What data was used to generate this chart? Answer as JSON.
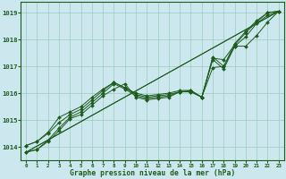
{
  "title": "Graphe pression niveau de la mer (hPa)",
  "bg_color": "#cce8ee",
  "grid_color": "#99ccbb",
  "line_color": "#1e5c1e",
  "xlim": [
    -0.5,
    23.5
  ],
  "ylim": [
    1013.5,
    1019.4
  ],
  "yticks": [
    1014,
    1015,
    1016,
    1017,
    1018,
    1019
  ],
  "xticks": [
    0,
    1,
    2,
    3,
    4,
    5,
    6,
    7,
    8,
    9,
    10,
    11,
    12,
    13,
    14,
    15,
    16,
    17,
    18,
    19,
    20,
    21,
    22,
    23
  ],
  "series": [
    [
      1013.8,
      1013.9,
      1014.2,
      1014.6,
      1015.05,
      1015.2,
      1015.55,
      1015.9,
      1016.15,
      1016.35,
      1015.85,
      1015.75,
      1015.8,
      1015.85,
      1016.05,
      1016.05,
      1015.85,
      1016.95,
      1017.0,
      1017.75,
      1017.75,
      1018.15,
      1018.65,
      1019.05
    ],
    [
      1013.8,
      1013.9,
      1014.25,
      1014.7,
      1015.1,
      1015.3,
      1015.65,
      1016.0,
      1016.35,
      1016.15,
      1015.9,
      1015.8,
      1015.85,
      1015.9,
      1016.05,
      1016.05,
      1015.85,
      1017.25,
      1016.9,
      1017.75,
      1018.1,
      1018.6,
      1018.9,
      1019.05
    ],
    [
      1014.05,
      1014.2,
      1014.5,
      1014.9,
      1015.2,
      1015.4,
      1015.75,
      1016.1,
      1016.4,
      1016.2,
      1015.95,
      1015.85,
      1015.9,
      1015.95,
      1016.05,
      1016.1,
      1015.85,
      1017.3,
      1017.25,
      1017.8,
      1018.25,
      1018.65,
      1019.0,
      1019.05
    ],
    [
      1014.05,
      1014.2,
      1014.55,
      1015.1,
      1015.3,
      1015.5,
      1015.85,
      1016.15,
      1016.4,
      1016.2,
      1016.0,
      1015.9,
      1015.95,
      1016.0,
      1016.1,
      1016.1,
      1015.85,
      1017.35,
      1017.0,
      1017.85,
      1018.3,
      1018.7,
      1019.0,
      1019.05
    ]
  ],
  "straight_series": [
    [
      [
        0,
        23
      ],
      [
        1013.8,
        1019.05
      ]
    ],
    [
      [
        0,
        23
      ],
      [
        1013.8,
        1019.05
      ]
    ]
  ]
}
